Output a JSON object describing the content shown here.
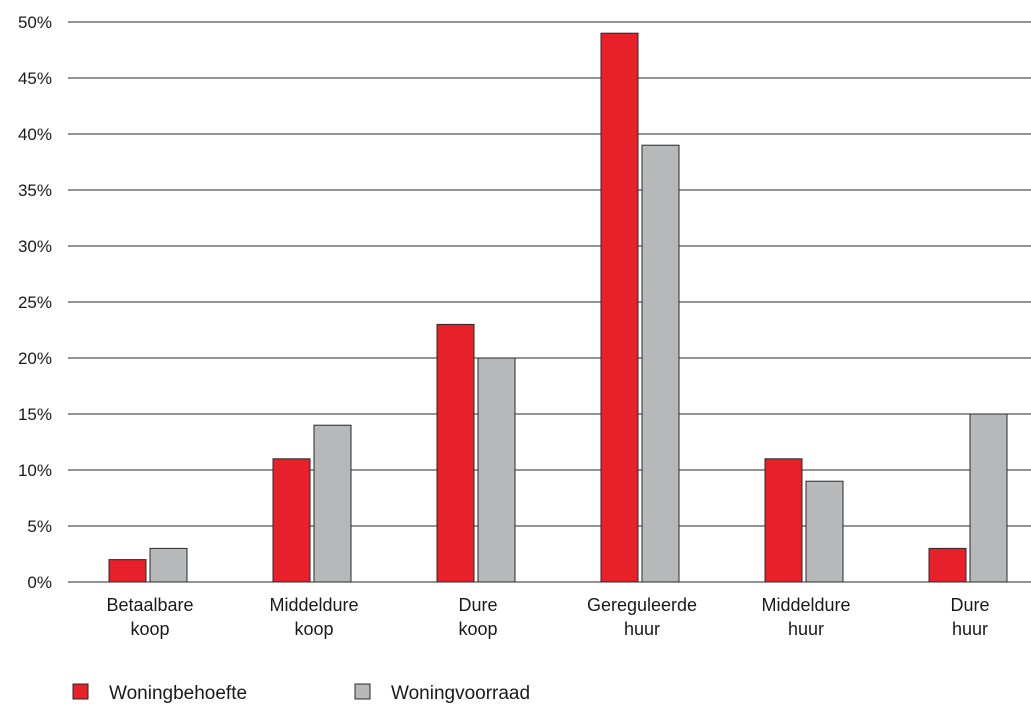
{
  "chart_data": {
    "type": "bar",
    "categories": [
      [
        "Betaalbare",
        "koop"
      ],
      [
        "Middeldure",
        "koop"
      ],
      [
        "Dure",
        "koop"
      ],
      [
        "Gereguleerde",
        "huur"
      ],
      [
        "Middeldure",
        "huur"
      ],
      [
        "Dure",
        "huur"
      ]
    ],
    "series": [
      {
        "name": "Woningbehoefte",
        "color": "#e8202a",
        "values": [
          2,
          11,
          23,
          49,
          11,
          3
        ]
      },
      {
        "name": "Woningvoorraad",
        "color": "#b7b8ba",
        "values": [
          3,
          14,
          20,
          39,
          9,
          15
        ]
      }
    ],
    "y_ticks": [
      0,
      5,
      10,
      15,
      20,
      25,
      30,
      35,
      40,
      45,
      50
    ],
    "y_tick_suffix": "%",
    "ylim": [
      0,
      50
    ],
    "grid": true,
    "legend_position": "bottom-left",
    "title": "",
    "xlabel": "",
    "ylabel": ""
  }
}
